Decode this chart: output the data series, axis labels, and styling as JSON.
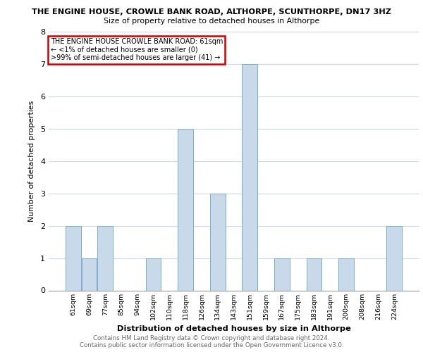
{
  "title_line1": "THE ENGINE HOUSE, CROWLE BANK ROAD, ALTHORPE, SCUNTHORPE, DN17 3HZ",
  "title_line2": "Size of property relative to detached houses in Althorpe",
  "xlabel": "Distribution of detached houses by size in Althorpe",
  "ylabel": "Number of detached properties",
  "bar_labels": [
    "61sqm",
    "69sqm",
    "77sqm",
    "85sqm",
    "94sqm",
    "102sqm",
    "110sqm",
    "118sqm",
    "126sqm",
    "134sqm",
    "143sqm",
    "151sqm",
    "159sqm",
    "167sqm",
    "175sqm",
    "183sqm",
    "191sqm",
    "200sqm",
    "208sqm",
    "216sqm",
    "224sqm"
  ],
  "bar_values": [
    2,
    1,
    2,
    0,
    0,
    1,
    0,
    5,
    0,
    3,
    0,
    7,
    0,
    1,
    0,
    1,
    0,
    1,
    0,
    0,
    2
  ],
  "highlight_index": 0,
  "bar_color": "#c8daea",
  "bar_edge_color": "#7bacd4",
  "highlight_outline_color": "#cc0000",
  "grid_color": "#c8daea",
  "background_color": "#ffffff",
  "annotation_box_text": "THE ENGINE HOUSE CROWLE BANK ROAD: 61sqm\n← <1% of detached houses are smaller (0)\n>99% of semi-detached houses are larger (41) →",
  "annotation_box_color": "#ffffff",
  "annotation_box_edge_color": "#cc0000",
  "footer_line1": "Contains HM Land Registry data © Crown copyright and database right 2024.",
  "footer_line2": "Contains public sector information licensed under the Open Government Licence v3.0.",
  "ylim": [
    0,
    8
  ],
  "yticks": [
    0,
    1,
    2,
    3,
    4,
    5,
    6,
    7,
    8
  ]
}
